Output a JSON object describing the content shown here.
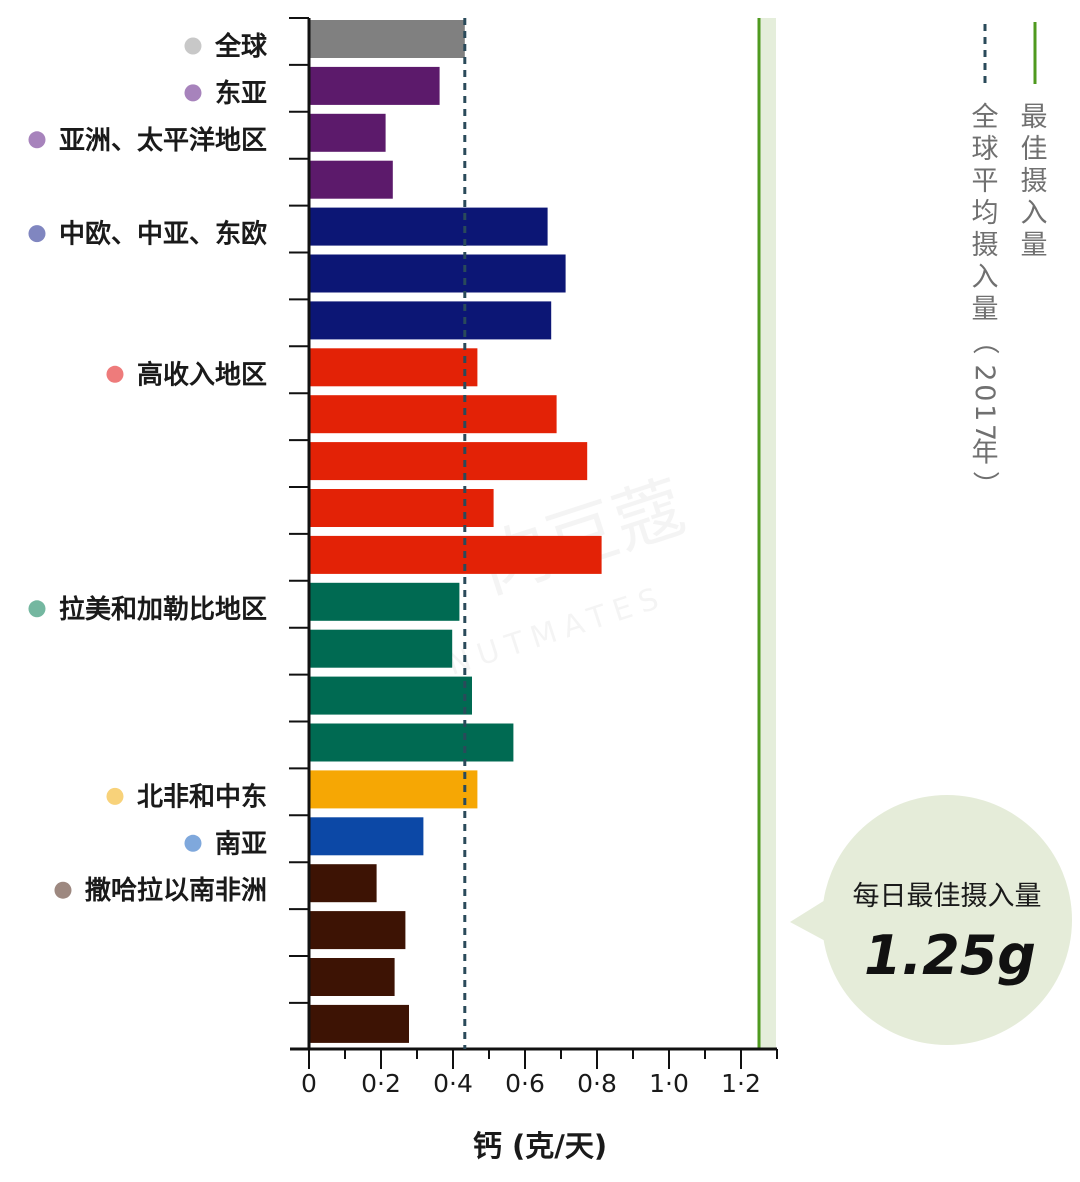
{
  "chart_data": {
    "type": "bar",
    "orientation": "horizontal",
    "xlabel": "钙 (克/天)",
    "xlim": [
      0,
      1.3
    ],
    "x_ticks": [
      {
        "value": 0,
        "label": "0"
      },
      {
        "value": 0.2,
        "label": "0·2"
      },
      {
        "value": 0.4,
        "label": "0·4"
      },
      {
        "value": 0.6,
        "label": "0·6"
      },
      {
        "value": 0.8,
        "label": "0·8"
      },
      {
        "value": 1.0,
        "label": "1·0"
      },
      {
        "value": 1.2,
        "label": "1·2"
      }
    ],
    "grid": false,
    "groups": [
      {
        "label": "全球",
        "color": "#808080",
        "dot_color": "#c8c8c8",
        "values": [
          0.43
        ]
      },
      {
        "label": "东亚",
        "color": "#5c1a6b",
        "dot_color": "#a783bc",
        "values": [
          0.36
        ]
      },
      {
        "label": "亚洲、太平洋地区",
        "color": "#5c1a6b",
        "dot_color": "#a783bc",
        "values": [
          0.21,
          0.23
        ]
      },
      {
        "label": "中欧、中亚、东欧",
        "color": "#0c1675",
        "dot_color": "#8086c0",
        "values": [
          0.66,
          0.71,
          0.67
        ]
      },
      {
        "label": "高收入地区",
        "color": "#e32206",
        "dot_color": "#ee7b7b",
        "values": [
          0.465,
          0.685,
          0.77,
          0.51,
          0.81
        ]
      },
      {
        "label": "拉美和加勒比地区",
        "color": "#006a52",
        "dot_color": "#74b7a0",
        "values": [
          0.415,
          0.395,
          0.45,
          0.565
        ]
      },
      {
        "label": "北非和中东",
        "color": "#f6a704",
        "dot_color": "#f8d27a",
        "values": [
          0.465
        ]
      },
      {
        "label": "南亚",
        "color": "#0c48a6",
        "dot_color": "#7fa8dc",
        "values": [
          0.315
        ]
      },
      {
        "label": "撒哈拉以南非洲",
        "color": "#3d1304",
        "dot_color": "#9d8880",
        "values": [
          0.185,
          0.265,
          0.235,
          0.275
        ]
      }
    ],
    "reference_lines": [
      {
        "name": "全球平均摄入量（2017年）",
        "value": 0.43,
        "style": "dashed",
        "color": "#2a4a5a"
      },
      {
        "name": "最佳摄入量",
        "value": 1.25,
        "style": "solid",
        "color": "#4f9a1f",
        "band_color": "#e5eedb"
      }
    ],
    "callout": {
      "title": "每日最佳摄入量",
      "value": "1.25g",
      "bg_color": "#e5ecd9"
    },
    "watermark": {
      "text_cn": "肉豆蔻",
      "text_en": "NUTMATES"
    }
  }
}
